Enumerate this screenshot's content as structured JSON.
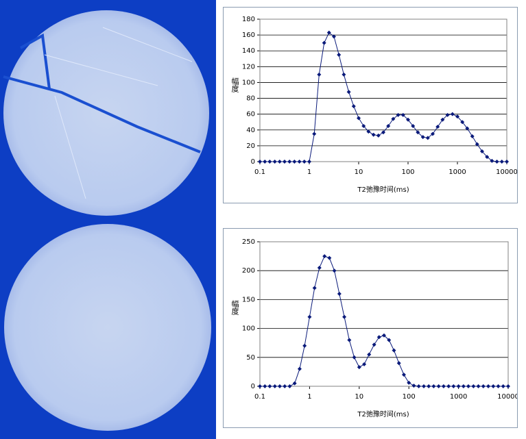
{
  "chart_data": [
    {
      "type": "line",
      "x_label": "T2弛豫时间(ms)",
      "y_label": "幅度",
      "log_x": true,
      "grid": true,
      "color": "#0a1a7a",
      "x": [
        0.1,
        0.126,
        0.158,
        0.2,
        0.251,
        0.316,
        0.398,
        0.501,
        0.631,
        0.794,
        1,
        1.26,
        1.58,
        2,
        2.51,
        3.16,
        3.98,
        5.01,
        6.31,
        7.94,
        10,
        12.6,
        15.8,
        20,
        25.1,
        31.6,
        39.8,
        50.1,
        63.1,
        79.4,
        100,
        126,
        158,
        200,
        251,
        316,
        398,
        501,
        631,
        794,
        1000,
        1260,
        1580,
        2000,
        2510,
        3160,
        3980,
        5010,
        6310,
        7940,
        10000
      ],
      "values": [
        0,
        0,
        0,
        0,
        0,
        0,
        0,
        0,
        0,
        0,
        0,
        35,
        110,
        150,
        163,
        158,
        135,
        110,
        88,
        70,
        55,
        45,
        38,
        34,
        33,
        37,
        45,
        54,
        59,
        59,
        53,
        45,
        37,
        31,
        30,
        35,
        44,
        53,
        59,
        60,
        57,
        50,
        42,
        32,
        22,
        13,
        6,
        1,
        0,
        0,
        0
      ],
      "xlim": [
        0.1,
        10000
      ],
      "xticks": [
        0.1,
        1,
        10,
        100,
        1000,
        10000
      ],
      "ylim": [
        0,
        180
      ],
      "yticks": [
        0,
        20,
        40,
        60,
        80,
        100,
        120,
        140,
        160,
        180
      ]
    },
    {
      "type": "line",
      "x_label": "T2弛豫时间(ms)",
      "y_label": "幅度",
      "log_x": true,
      "grid": true,
      "color": "#0a1a7a",
      "x": [
        0.1,
        0.126,
        0.158,
        0.2,
        0.251,
        0.316,
        0.398,
        0.501,
        0.631,
        0.794,
        1,
        1.26,
        1.58,
        2,
        2.51,
        3.16,
        3.98,
        5.01,
        6.31,
        7.94,
        10,
        12.6,
        15.8,
        20,
        25.1,
        31.6,
        39.8,
        50.1,
        63.1,
        79.4,
        100,
        126,
        158,
        200,
        251,
        316,
        398,
        501,
        631,
        794,
        1000,
        1260,
        1580,
        2000,
        2510,
        3160,
        3980,
        5010,
        6310,
        7940,
        10000
      ],
      "values": [
        0,
        0,
        0,
        0,
        0,
        0,
        0,
        5,
        30,
        70,
        120,
        170,
        205,
        225,
        222,
        200,
        160,
        120,
        80,
        50,
        33,
        38,
        55,
        72,
        85,
        88,
        80,
        62,
        40,
        20,
        6,
        1,
        0,
        0,
        0,
        0,
        0,
        0,
        0,
        0,
        0,
        0,
        0,
        0,
        0,
        0,
        0,
        0,
        0,
        0,
        0
      ],
      "xlim": [
        0.1,
        10000
      ],
      "xticks": [
        0.1,
        1,
        10,
        100,
        1000,
        10000
      ],
      "ylim": [
        0,
        250
      ],
      "yticks": [
        0,
        50,
        100,
        150,
        200,
        250
      ]
    }
  ]
}
